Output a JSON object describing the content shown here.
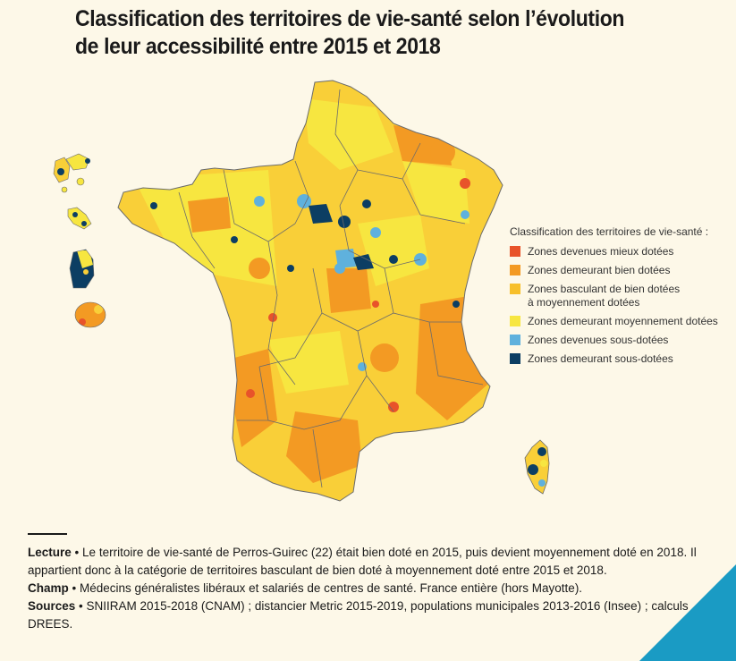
{
  "title": {
    "line1": "Classification des territoires de vie-santé selon l’évolution",
    "line2": "de leur accessibilité entre 2015 et 2018"
  },
  "legend": {
    "title": "Classification des territoires de vie-santé :",
    "items": [
      {
        "label": "Zones devenues mieux dotées",
        "color": "#e8532a"
      },
      {
        "label": "Zones demeurant bien dotées",
        "color": "#f39a23"
      },
      {
        "label": "Zones basculant de bien dotées",
        "label2": "à moyennement dotées",
        "color": "#f7bf2a"
      },
      {
        "label": "Zones demeurant moyennement dotées",
        "color": "#f7e640"
      },
      {
        "label": "Zones devenues sous-dotées",
        "color": "#5fb1dd"
      },
      {
        "label": "Zones demeurant sous-dotées",
        "color": "#0c3e63"
      }
    ]
  },
  "map": {
    "background_color": "#fdf8e8",
    "border_color": "#6b6b6b"
  },
  "notes": {
    "lecture_label": "Lecture",
    "lecture_text": "Le territoire de vie-santé de Perros-Guirec (22) était bien doté en 2015, puis devient moyennement doté en 2018. Il appartient donc à la catégorie de territoires basculant de bien doté à moyennement doté entre 2015 et 2018.",
    "champ_label": "Champ",
    "champ_text": "Médecins généralistes libéraux et salariés de centres de santé. France entière (hors Mayotte).",
    "sources_label": "Sources",
    "sources_text": "SNIIRAM 2015-2018 (CNAM) ; distancier Metric 2015-2019, populations municipales 2013-2016 (Insee) ; calculs DREES.",
    "bullet": "•"
  },
  "accent_color": "#1a9bc4"
}
